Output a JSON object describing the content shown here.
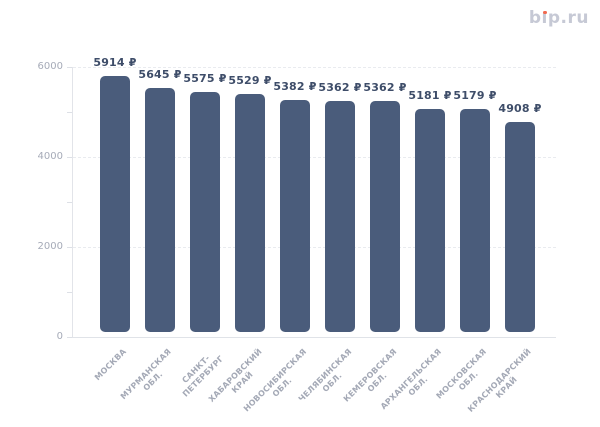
{
  "logo": {
    "first_letter": "b",
    "i_dotless": "ı",
    "rest": "p.ru",
    "full_text": "bip.ru",
    "color": "#c6c9d5",
    "dot_color": "#f1694e"
  },
  "chart_data": {
    "type": "bar",
    "title": "",
    "xlabel": "",
    "ylabel": "",
    "unit": "₽",
    "categories": [
      "МОСКВА",
      "МУРМАНСКАЯ ОБЛ.",
      "САНКТ-ПЕТЕРБУРГ",
      "ХАБАРОВСКИЙ КРАЙ",
      "НОВОСИБИРСКАЯ ОБЛ.",
      "ЧЕЛЯБИНСКАЯ ОБЛ.",
      "КЕМЕРОВСКАЯ ОБЛ.",
      "АРХАНГЕЛЬСКАЯ ОБЛ.",
      "МОСКОВСКАЯ ОБЛ.",
      "КРАСНОДАРСКИЙ КРАЙ"
    ],
    "category_lines": [
      [
        "МОСКВА"
      ],
      [
        "МУРМАНСКАЯ",
        "ОБЛ."
      ],
      [
        "САНКТ-",
        "ПЕТЕРБУРГ"
      ],
      [
        "ХАБАРОВСКИЙ",
        "КРАЙ"
      ],
      [
        "НОВОСИБИРСКАЯ",
        "ОБЛ."
      ],
      [
        "ЧЕЛЯБИНСКАЯ",
        "ОБЛ."
      ],
      [
        "КЕМЕРОВСКАЯ",
        "ОБЛ."
      ],
      [
        "АРХАНГЕЛЬСКАЯ",
        "ОБЛ."
      ],
      [
        "МОСКОВСКАЯ",
        "ОБЛ."
      ],
      [
        "КРАСНОДАРСКИЙ",
        "КРАЙ"
      ]
    ],
    "values": [
      5914,
      5645,
      5575,
      5529,
      5382,
      5362,
      5362,
      5181,
      5179,
      4908
    ],
    "value_labels": [
      "5914 ₽",
      "5645 ₽",
      "5575 ₽",
      "5529 ₽",
      "5382 ₽",
      "5362 ₽",
      "5362 ₽",
      "5181 ₽",
      "5179 ₽",
      "4908 ₽"
    ],
    "ylim": [
      0,
      6000
    ],
    "y_ticks": [
      0,
      2000,
      4000,
      6000
    ],
    "y_tick_labels": [
      "0",
      "2000",
      "4000",
      "6000"
    ],
    "minor_tick_step": 1000,
    "grid": "horizontal dashed at major ticks",
    "legend": "none",
    "bar_color": "#4a5c7b",
    "value_label_color": "#3e4d69",
    "axis_text_color": "#a6abb8"
  }
}
